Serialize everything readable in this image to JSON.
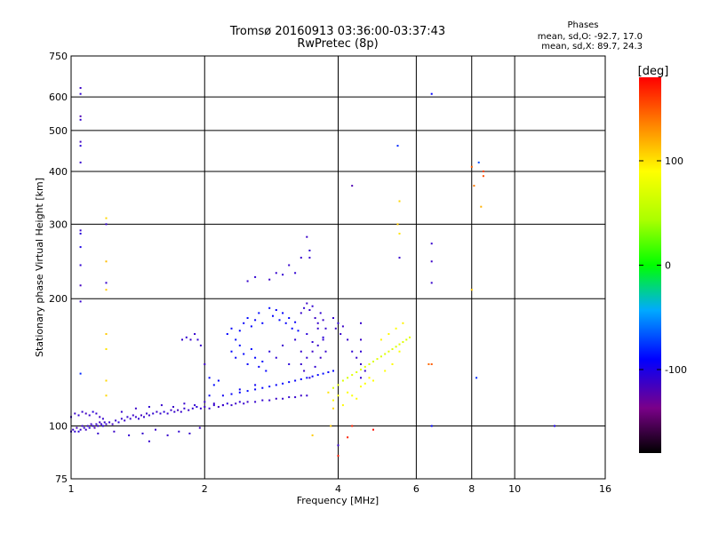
{
  "chart_data": {
    "type": "scatter",
    "title": "Tromsø 20160913 03:36:00-03:37:43",
    "subtitle": "RwPretec (8p)",
    "xlabel": "Frequency [MHz]",
    "ylabel": "Stationary phase Virtual Height [km]",
    "x_scale": "log2",
    "y_scale": "log",
    "xlim": [
      1,
      16
    ],
    "ylim": [
      75,
      750
    ],
    "x_ticks": [
      "1",
      "2",
      "4",
      "6",
      "8",
      "10",
      "16"
    ],
    "y_ticks": [
      "750",
      "600",
      "500",
      "400",
      "300",
      "200",
      "100",
      "75"
    ],
    "x_tick_values": [
      1,
      2,
      4,
      6,
      8,
      10,
      16
    ],
    "y_tick_values": [
      750,
      600,
      500,
      400,
      300,
      200,
      100,
      75
    ],
    "x_grid": [
      2,
      4,
      6,
      8,
      10
    ],
    "y_grid": [
      600,
      500,
      400,
      300,
      200,
      100
    ],
    "grid": true,
    "stats": {
      "heading": "Phases",
      "line_o": "mean, sd,O: -92.7, 17.0",
      "line_x": "mean, sd,X: 89.7, 24.3"
    },
    "colorbar": {
      "unit": "[deg]",
      "range": [
        -180,
        180
      ],
      "ticks": [
        "100",
        "0",
        "-100"
      ],
      "tick_values": [
        100,
        0,
        -100
      ]
    },
    "points": [
      [
        1.05,
        420,
        -110
      ],
      [
        1.05,
        460,
        -105
      ],
      [
        1.05,
        470,
        -115
      ],
      [
        1.05,
        530,
        -110
      ],
      [
        1.05,
        540,
        -120
      ],
      [
        1.05,
        610,
        -108
      ],
      [
        1.05,
        630,
        -112
      ],
      [
        1.05,
        290,
        -110
      ],
      [
        1.05,
        285,
        -105
      ],
      [
        1.05,
        265,
        -100
      ],
      [
        1.05,
        240,
        -108
      ],
      [
        1.05,
        215,
        -115
      ],
      [
        1.05,
        197,
        -110
      ],
      [
        1.05,
        133,
        -80
      ],
      [
        1.2,
        300,
        -110
      ],
      [
        1.2,
        218,
        -110
      ],
      [
        1.2,
        310,
        105
      ],
      [
        1.2,
        210,
        110
      ],
      [
        1.2,
        245,
        115
      ],
      [
        1.2,
        165,
        110
      ],
      [
        1.2,
        152,
        100
      ],
      [
        1.2,
        128,
        105
      ],
      [
        1.2,
        118,
        105
      ],
      [
        1.0,
        97,
        -110
      ],
      [
        1.01,
        98,
        -112
      ],
      [
        1.02,
        97,
        -108
      ],
      [
        1.03,
        99,
        -115
      ],
      [
        1.04,
        97,
        -105
      ],
      [
        1.05,
        98,
        -110
      ],
      [
        1.06,
        100,
        -112
      ],
      [
        1.07,
        99,
        -108
      ],
      [
        1.08,
        98,
        -115
      ],
      [
        1.09,
        100,
        -110
      ],
      [
        1.1,
        99,
        -105
      ],
      [
        1.11,
        101,
        -112
      ],
      [
        1.12,
        100,
        -110
      ],
      [
        1.13,
        99,
        -118
      ],
      [
        1.14,
        101,
        -110
      ],
      [
        1.15,
        100,
        -108
      ],
      [
        1.16,
        102,
        -112
      ],
      [
        1.17,
        101,
        -110
      ],
      [
        1.18,
        100,
        -105
      ],
      [
        1.19,
        102,
        -110
      ],
      [
        1.2,
        101,
        -112
      ],
      [
        1.22,
        102,
        -108
      ],
      [
        1.24,
        101,
        -115
      ],
      [
        1.26,
        103,
        -110
      ],
      [
        1.28,
        102,
        -105
      ],
      [
        1.3,
        104,
        -110
      ],
      [
        1.32,
        103,
        -112
      ],
      [
        1.34,
        105,
        -108
      ],
      [
        1.36,
        104,
        -110
      ],
      [
        1.38,
        106,
        -112
      ],
      [
        1.4,
        105,
        -110
      ],
      [
        1.42,
        104,
        -108
      ],
      [
        1.44,
        106,
        -115
      ],
      [
        1.46,
        105,
        -110
      ],
      [
        1.48,
        107,
        -112
      ],
      [
        1.5,
        106,
        -110
      ],
      [
        1.53,
        107,
        -108
      ],
      [
        1.56,
        108,
        -112
      ],
      [
        1.59,
        107,
        -110
      ],
      [
        1.62,
        108,
        -105
      ],
      [
        1.65,
        107,
        -110
      ],
      [
        1.68,
        109,
        -112
      ],
      [
        1.71,
        108,
        -110
      ],
      [
        1.74,
        109,
        -115
      ],
      [
        1.77,
        108,
        -110
      ],
      [
        1.8,
        110,
        -108
      ],
      [
        1.84,
        109,
        -112
      ],
      [
        1.88,
        110,
        -110
      ],
      [
        1.92,
        111,
        -105
      ],
      [
        1.96,
        110,
        -110
      ],
      [
        2.0,
        111,
        -112
      ],
      [
        2.05,
        110,
        -110
      ],
      [
        2.1,
        112,
        -108
      ],
      [
        2.15,
        111,
        -115
      ],
      [
        2.2,
        112,
        -110
      ],
      [
        2.25,
        113,
        -105
      ],
      [
        2.3,
        112,
        -110
      ],
      [
        2.35,
        113,
        -112
      ],
      [
        2.4,
        114,
        -108
      ],
      [
        2.45,
        113,
        -110
      ],
      [
        2.5,
        114,
        -112
      ],
      [
        2.6,
        114,
        -110
      ],
      [
        2.7,
        115,
        -108
      ],
      [
        2.8,
        115,
        -110
      ],
      [
        2.9,
        116,
        -112
      ],
      [
        3.0,
        116,
        -110
      ],
      [
        3.1,
        117,
        -108
      ],
      [
        3.2,
        117,
        -110
      ],
      [
        3.3,
        118,
        -112
      ],
      [
        3.4,
        118,
        -110
      ],
      [
        1.0,
        105,
        -110
      ],
      [
        1.02,
        107,
        -112
      ],
      [
        1.04,
        106,
        -108
      ],
      [
        1.06,
        108,
        -110
      ],
      [
        1.08,
        107,
        -115
      ],
      [
        1.1,
        106,
        -110
      ],
      [
        1.12,
        108,
        -105
      ],
      [
        1.14,
        107,
        -110
      ],
      [
        1.16,
        105,
        -112
      ],
      [
        1.18,
        104,
        -110
      ],
      [
        1.3,
        108,
        -110
      ],
      [
        1.4,
        110,
        -112
      ],
      [
        1.5,
        111,
        -108
      ],
      [
        1.6,
        112,
        -110
      ],
      [
        1.7,
        111,
        -112
      ],
      [
        1.8,
        113,
        -110
      ],
      [
        1.9,
        112,
        -108
      ],
      [
        2.0,
        114,
        -110
      ],
      [
        2.1,
        113,
        -112
      ],
      [
        2.2,
        112,
        -110
      ],
      [
        1.15,
        96,
        -110
      ],
      [
        1.25,
        97,
        -112
      ],
      [
        1.35,
        95,
        -108
      ],
      [
        1.45,
        96,
        -110
      ],
      [
        1.55,
        98,
        -112
      ],
      [
        1.65,
        95,
        -110
      ],
      [
        1.75,
        97,
        -108
      ],
      [
        1.85,
        96,
        -110
      ],
      [
        1.95,
        99,
        -112
      ],
      [
        1.5,
        92,
        -110
      ],
      [
        2.2,
        118,
        -95
      ],
      [
        2.3,
        119,
        -92
      ],
      [
        2.4,
        120,
        -90
      ],
      [
        2.5,
        121,
        -88
      ],
      [
        2.6,
        122,
        -92
      ],
      [
        2.7,
        123,
        -90
      ],
      [
        2.8,
        124,
        -88
      ],
      [
        2.9,
        125,
        -92
      ],
      [
        3.0,
        126,
        -90
      ],
      [
        3.1,
        127,
        -88
      ],
      [
        3.2,
        128,
        -92
      ],
      [
        3.3,
        129,
        -90
      ],
      [
        3.4,
        130,
        -88
      ],
      [
        3.5,
        131,
        -92
      ],
      [
        3.6,
        132,
        -90
      ],
      [
        3.7,
        133,
        -88
      ],
      [
        3.8,
        134,
        -92
      ],
      [
        3.9,
        135,
        -90
      ],
      [
        2.4,
        122,
        -95
      ],
      [
        2.6,
        125,
        -95
      ],
      [
        2.25,
        165,
        -90
      ],
      [
        2.3,
        170,
        -92
      ],
      [
        2.35,
        160,
        -88
      ],
      [
        2.4,
        168,
        -90
      ],
      [
        2.45,
        175,
        -92
      ],
      [
        2.5,
        180,
        -88
      ],
      [
        2.55,
        172,
        -90
      ],
      [
        2.6,
        178,
        -92
      ],
      [
        2.65,
        185,
        -88
      ],
      [
        2.7,
        175,
        -90
      ],
      [
        2.3,
        150,
        -90
      ],
      [
        2.35,
        145,
        -92
      ],
      [
        2.4,
        155,
        -88
      ],
      [
        2.45,
        148,
        -90
      ],
      [
        2.5,
        140,
        -92
      ],
      [
        2.55,
        152,
        -88
      ],
      [
        2.6,
        145,
        -90
      ],
      [
        2.65,
        138,
        -92
      ],
      [
        2.7,
        142,
        -88
      ],
      [
        2.75,
        135,
        -90
      ],
      [
        2.8,
        190,
        -88
      ],
      [
        2.85,
        182,
        -90
      ],
      [
        2.9,
        188,
        -92
      ],
      [
        2.95,
        178,
        -88
      ],
      [
        3.0,
        185,
        -90
      ],
      [
        3.05,
        175,
        -92
      ],
      [
        3.1,
        180,
        -88
      ],
      [
        3.15,
        170,
        -90
      ],
      [
        3.2,
        176,
        -92
      ],
      [
        3.25,
        168,
        -88
      ],
      [
        2.8,
        150,
        -105
      ],
      [
        2.9,
        145,
        -108
      ],
      [
        3.0,
        155,
        -110
      ],
      [
        3.1,
        140,
        -105
      ],
      [
        3.2,
        160,
        -108
      ],
      [
        3.3,
        150,
        -110
      ],
      [
        3.4,
        165,
        -105
      ],
      [
        3.5,
        158,
        -108
      ],
      [
        3.6,
        170,
        -110
      ],
      [
        3.7,
        162,
        -105
      ],
      [
        3.3,
        185,
        -110
      ],
      [
        3.35,
        190,
        -108
      ],
      [
        3.4,
        195,
        -112
      ],
      [
        3.45,
        188,
        -110
      ],
      [
        3.5,
        192,
        -108
      ],
      [
        3.55,
        180,
        -112
      ],
      [
        3.6,
        175,
        -110
      ],
      [
        3.65,
        185,
        -108
      ],
      [
        3.7,
        178,
        -112
      ],
      [
        3.75,
        170,
        -110
      ],
      [
        3.3,
        140,
        -110
      ],
      [
        3.35,
        135,
        -112
      ],
      [
        3.4,
        145,
        -108
      ],
      [
        3.45,
        130,
        -110
      ],
      [
        3.5,
        150,
        -112
      ],
      [
        3.55,
        138,
        -108
      ],
      [
        3.6,
        155,
        -110
      ],
      [
        3.65,
        145,
        -112
      ],
      [
        3.7,
        160,
        -108
      ],
      [
        3.75,
        150,
        -110
      ],
      [
        3.9,
        180,
        -110
      ],
      [
        3.95,
        170,
        -112
      ],
      [
        4.0,
        175,
        -108
      ],
      [
        4.05,
        165,
        -110
      ],
      [
        4.1,
        172,
        -112
      ],
      [
        4.2,
        160,
        -110
      ],
      [
        4.3,
        150,
        -108
      ],
      [
        4.4,
        145,
        -110
      ],
      [
        4.5,
        140,
        -112
      ],
      [
        4.6,
        135,
        -110
      ],
      [
        4.5,
        175,
        -110
      ],
      [
        4.5,
        160,
        -112
      ],
      [
        4.5,
        150,
        -108
      ],
      [
        4.5,
        130,
        -110
      ],
      [
        3.2,
        230,
        -108
      ],
      [
        3.3,
        250,
        -110
      ],
      [
        3.4,
        280,
        -112
      ],
      [
        3.45,
        260,
        -108
      ],
      [
        3.45,
        250,
        -110
      ],
      [
        2.5,
        220,
        -110
      ],
      [
        2.6,
        225,
        -108
      ],
      [
        2.8,
        222,
        -112
      ],
      [
        2.9,
        230,
        -110
      ],
      [
        3.0,
        228,
        -108
      ],
      [
        3.1,
        240,
        -110
      ],
      [
        1.78,
        160,
        -110
      ],
      [
        1.82,
        162,
        -108
      ],
      [
        1.86,
        160,
        -112
      ],
      [
        1.9,
        165,
        -110
      ],
      [
        1.93,
        160,
        -108
      ],
      [
        1.96,
        155,
        -110
      ],
      [
        2.0,
        140,
        -112
      ],
      [
        2.05,
        130,
        -90
      ],
      [
        2.1,
        125,
        -88
      ],
      [
        2.05,
        118,
        -92
      ],
      [
        2.15,
        128,
        -90
      ],
      [
        3.9,
        123,
        70
      ],
      [
        4.0,
        125,
        75
      ],
      [
        4.1,
        128,
        72
      ],
      [
        4.2,
        130,
        70
      ],
      [
        4.3,
        132,
        75
      ],
      [
        4.4,
        134,
        72
      ],
      [
        4.5,
        136,
        70
      ],
      [
        4.6,
        138,
        75
      ],
      [
        4.7,
        140,
        72
      ],
      [
        4.8,
        142,
        70
      ],
      [
        4.9,
        144,
        75
      ],
      [
        5.0,
        146,
        72
      ],
      [
        5.1,
        148,
        70
      ],
      [
        5.2,
        150,
        75
      ],
      [
        5.3,
        152,
        72
      ],
      [
        5.4,
        154,
        70
      ],
      [
        5.5,
        156,
        75
      ],
      [
        5.6,
        158,
        72
      ],
      [
        5.7,
        160,
        70
      ],
      [
        5.8,
        162,
        75
      ],
      [
        3.9,
        115,
        90
      ],
      [
        4.0,
        118,
        88
      ],
      [
        4.1,
        112,
        92
      ],
      [
        4.2,
        120,
        90
      ],
      [
        4.3,
        118,
        88
      ],
      [
        4.4,
        116,
        92
      ],
      [
        4.5,
        124,
        90
      ],
      [
        4.6,
        126,
        88
      ],
      [
        4.7,
        130,
        92
      ],
      [
        4.8,
        128,
        90
      ],
      [
        3.8,
        120,
        100
      ],
      [
        3.9,
        110,
        105
      ],
      [
        3.85,
        100,
        110
      ],
      [
        5.0,
        160,
        95
      ],
      [
        5.2,
        165,
        92
      ],
      [
        5.4,
        170,
        90
      ],
      [
        5.6,
        175,
        95
      ],
      [
        5.5,
        150,
        88
      ],
      [
        5.3,
        140,
        92
      ],
      [
        5.1,
        135,
        90
      ],
      [
        5.5,
        340,
        105
      ],
      [
        5.5,
        285,
        100
      ],
      [
        5.45,
        300,
        110
      ],
      [
        5.45,
        460,
        -80
      ],
      [
        5.5,
        250,
        -110
      ],
      [
        6.5,
        610,
        -90
      ],
      [
        6.5,
        270,
        -110
      ],
      [
        6.5,
        245,
        -112
      ],
      [
        6.5,
        218,
        -110
      ],
      [
        6.5,
        140,
        150
      ],
      [
        6.4,
        140,
        145
      ],
      [
        6.5,
        100,
        -90
      ],
      [
        8.0,
        410,
        150
      ],
      [
        8.1,
        370,
        140
      ],
      [
        8.3,
        420,
        -70
      ],
      [
        8.5,
        400,
        160
      ],
      [
        8.4,
        330,
        120
      ],
      [
        8.5,
        390,
        155
      ],
      [
        8.2,
        130,
        -80
      ],
      [
        8.0,
        210,
        110
      ],
      [
        12.3,
        100,
        -100
      ],
      [
        4.3,
        370,
        -120
      ],
      [
        4.3,
        100,
        170
      ],
      [
        4.8,
        98,
        175
      ],
      [
        4.2,
        94,
        170
      ],
      [
        4.0,
        90,
        -110
      ],
      [
        4.0,
        85,
        170
      ],
      [
        3.5,
        95,
        110
      ]
    ]
  }
}
